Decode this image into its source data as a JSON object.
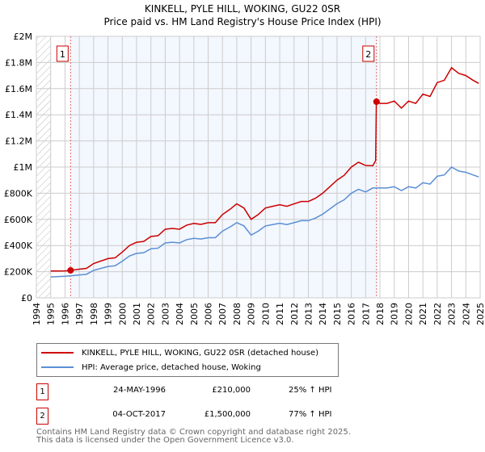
{
  "chart_data": {
    "type": "line",
    "title": "KINKELL, PYLE HILL, WOKING, GU22 0SR",
    "subtitle": "Price paid vs. HM Land Registry's House Price Index (HPI)",
    "xlim": [
      1994,
      2025
    ],
    "ylim": [
      0,
      2000000
    ],
    "x_ticks": [
      "1994",
      "1995",
      "1996",
      "1997",
      "1998",
      "1999",
      "2000",
      "2001",
      "2002",
      "2003",
      "2004",
      "2005",
      "2006",
      "2007",
      "2008",
      "2009",
      "2010",
      "2011",
      "2012",
      "2013",
      "2014",
      "2015",
      "2016",
      "2017",
      "2018",
      "2019",
      "2020",
      "2021",
      "2022",
      "2023",
      "2024",
      "2025"
    ],
    "y_ticks": [
      {
        "value": 0,
        "label": "£0"
      },
      {
        "value": 200000,
        "label": "£200K"
      },
      {
        "value": 400000,
        "label": "£400K"
      },
      {
        "value": 600000,
        "label": "£600K"
      },
      {
        "value": 800000,
        "label": "£800K"
      },
      {
        "value": 1000000,
        "label": "£1M"
      },
      {
        "value": 1200000,
        "label": "£1.2M"
      },
      {
        "value": 1400000,
        "label": "£1.4M"
      },
      {
        "value": 1600000,
        "label": "£1.6M"
      },
      {
        "value": 1800000,
        "label": "£1.8M"
      },
      {
        "value": 2000000,
        "label": "£2M"
      }
    ],
    "grid": true,
    "series": [
      {
        "name": "KINKELL, PYLE HILL, WOKING, GU22 0SR (detached house)",
        "color": "#cc0000",
        "x": [
          1995,
          1996,
          1996.4,
          1997,
          1997.5,
          1998,
          1999,
          1999.5,
          2000,
          2000.5,
          2001,
          2001.5,
          2002,
          2002.5,
          2003,
          2003.5,
          2004,
          2004.5,
          2005,
          2005.5,
          2006,
          2006.5,
          2007,
          2007.5,
          2008,
          2008.5,
          2009,
          2009.5,
          2010,
          2010.5,
          2011,
          2011.5,
          2012,
          2012.5,
          2013,
          2013.5,
          2014,
          2014.5,
          2015,
          2015.5,
          2016,
          2016.5,
          2017,
          2017.5,
          2017.7,
          2017.75,
          2018,
          2018.5,
          2019,
          2019.5,
          2020,
          2020.5,
          2021,
          2021.5,
          2022,
          2022.5,
          2023,
          2023.5,
          2024,
          2024.5,
          2024.9
        ],
        "values": [
          205,
          206,
          210,
          219,
          225,
          262,
          300,
          306,
          350,
          400,
          425,
          431,
          469,
          475,
          525,
          531,
          525,
          556,
          569,
          562,
          575,
          575,
          637,
          675,
          719,
          687,
          600,
          637,
          687,
          700,
          712,
          700,
          719,
          737,
          737,
          762,
          800,
          850,
          900,
          937,
          1000,
          1037,
          1012,
          1010,
          1050,
          1500,
          1487,
          1487,
          1505,
          1451,
          1505,
          1487,
          1558,
          1540,
          1646,
          1664,
          1760,
          1717,
          1700,
          1664,
          1640
        ],
        "unit": "thousand GBP"
      },
      {
        "name": "HPI: Average price, detached house, Woking",
        "color": "#5b8fd4",
        "x": [
          1995,
          1996,
          1996.4,
          1997,
          1997.5,
          1998,
          1999,
          1999.5,
          2000,
          2000.5,
          2001,
          2001.5,
          2002,
          2002.5,
          2003,
          2003.5,
          2004,
          2004.5,
          2005,
          2005.5,
          2006,
          2006.5,
          2007,
          2007.5,
          2008,
          2008.5,
          2009,
          2009.5,
          2010,
          2010.5,
          2011,
          2011.5,
          2012,
          2012.5,
          2013,
          2013.5,
          2014,
          2014.5,
          2015,
          2015.5,
          2016,
          2016.5,
          2017,
          2017.5,
          2018,
          2018.5,
          2019,
          2019.5,
          2020,
          2020.5,
          2021,
          2021.5,
          2022,
          2022.5,
          2023,
          2023.5,
          2024,
          2024.5,
          2024.9
        ],
        "values": [
          160,
          165,
          168,
          175,
          180,
          210,
          240,
          245,
          280,
          320,
          340,
          345,
          375,
          380,
          420,
          425,
          420,
          445,
          455,
          450,
          460,
          460,
          510,
          540,
          575,
          550,
          480,
          510,
          550,
          560,
          570,
          560,
          575,
          590,
          590,
          610,
          640,
          680,
          720,
          750,
          800,
          830,
          810,
          840,
          840,
          840,
          850,
          820,
          850,
          840,
          880,
          870,
          930,
          940,
          1000,
          970,
          960,
          940,
          925
        ],
        "unit": "thousand GBP"
      }
    ],
    "annotations": [
      {
        "label": "1",
        "x": 1996.39,
        "value": 210000
      },
      {
        "label": "2",
        "x": 2017.76,
        "value": 1500000
      }
    ],
    "shaded_range": [
      1996.39,
      2017.76
    ],
    "hatched_range": [
      1994,
      1995
    ]
  },
  "legend": {
    "red": "KINKELL, PYLE HILL, WOKING, GU22 0SR (detached house)",
    "blue": "HPI: Average price, detached house, Woking"
  },
  "transactions": [
    {
      "num": "1",
      "date": "24-MAY-1996",
      "price": "£210,000",
      "hpi": "25% ↑ HPI"
    },
    {
      "num": "2",
      "date": "04-OCT-2017",
      "price": "£1,500,000",
      "hpi": "77% ↑ HPI"
    }
  ],
  "footer": {
    "line1": "Contains HM Land Registry data © Crown copyright and database right 2025.",
    "line2": "This data is licensed under the Open Government Licence v3.0."
  }
}
